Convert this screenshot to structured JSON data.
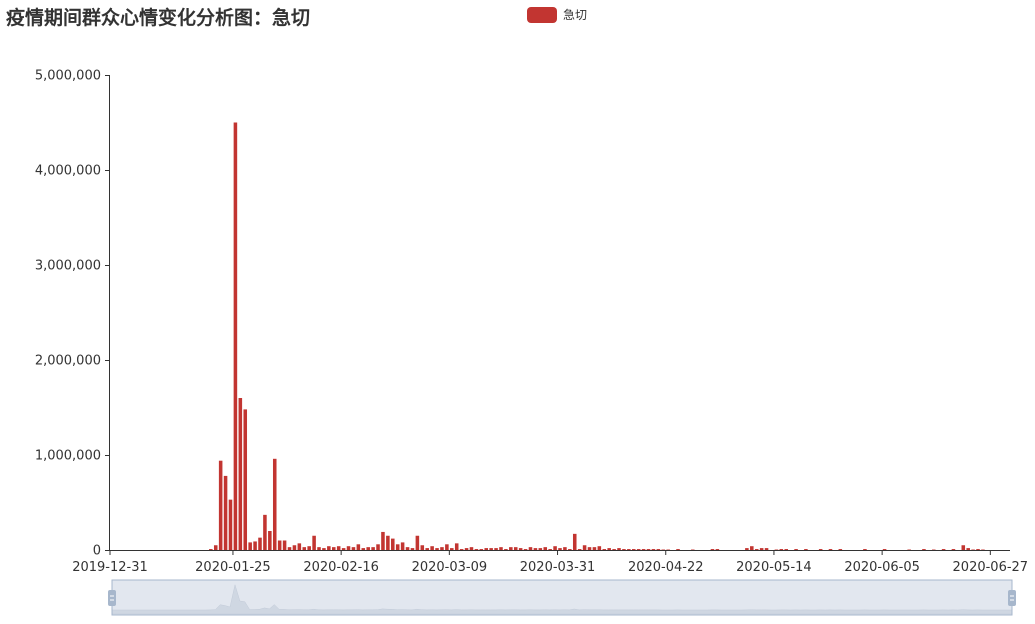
{
  "chart_data": {
    "type": "bar",
    "title": "疫情期间群众心情变化分析图：急切",
    "xlabel": "",
    "ylabel": "",
    "legend": {
      "position": "top-center",
      "entries": [
        "急切"
      ]
    },
    "grid": false,
    "colors": {
      "bar": "#c23531",
      "axis": "#333333",
      "slider_fill": "#d5dce8",
      "slider_border": "#a7b7cc"
    },
    "x_tick_labels": [
      "2019-12-31",
      "2020-01-25",
      "2020-02-16",
      "2020-03-09",
      "2020-03-31",
      "2020-04-22",
      "2020-05-14",
      "2020-06-05",
      "2020-06-27"
    ],
    "y_tick_labels": [
      "0",
      "1,000,000",
      "2,000,000",
      "3,000,000",
      "4,000,000",
      "5,000,000"
    ],
    "ylim": [
      0,
      5000000
    ],
    "xlim": [
      "2019-12-31",
      "2020-07-01"
    ],
    "datazoom": {
      "start": 0,
      "end": 100
    },
    "series": [
      {
        "name": "急切",
        "points": [
          [
            "2020-01-20",
            10000
          ],
          [
            "2020-01-21",
            50000
          ],
          [
            "2020-01-22",
            940000
          ],
          [
            "2020-01-23",
            780000
          ],
          [
            "2020-01-24",
            530000
          ],
          [
            "2020-01-25",
            4500000
          ],
          [
            "2020-01-26",
            1600000
          ],
          [
            "2020-01-27",
            1480000
          ],
          [
            "2020-01-28",
            80000
          ],
          [
            "2020-01-29",
            90000
          ],
          [
            "2020-01-30",
            130000
          ],
          [
            "2020-01-31",
            370000
          ],
          [
            "2020-02-01",
            200000
          ],
          [
            "2020-02-02",
            960000
          ],
          [
            "2020-02-03",
            100000
          ],
          [
            "2020-02-04",
            100000
          ],
          [
            "2020-02-05",
            30000
          ],
          [
            "2020-02-06",
            50000
          ],
          [
            "2020-02-07",
            70000
          ],
          [
            "2020-02-08",
            30000
          ],
          [
            "2020-02-09",
            40000
          ],
          [
            "2020-02-10",
            150000
          ],
          [
            "2020-02-11",
            30000
          ],
          [
            "2020-02-12",
            20000
          ],
          [
            "2020-02-13",
            40000
          ],
          [
            "2020-02-14",
            30000
          ],
          [
            "2020-02-15",
            40000
          ],
          [
            "2020-02-16",
            20000
          ],
          [
            "2020-02-17",
            40000
          ],
          [
            "2020-02-18",
            30000
          ],
          [
            "2020-02-19",
            60000
          ],
          [
            "2020-02-20",
            20000
          ],
          [
            "2020-02-21",
            30000
          ],
          [
            "2020-02-22",
            30000
          ],
          [
            "2020-02-23",
            60000
          ],
          [
            "2020-02-24",
            190000
          ],
          [
            "2020-02-25",
            150000
          ],
          [
            "2020-02-26",
            120000
          ],
          [
            "2020-02-27",
            60000
          ],
          [
            "2020-02-28",
            80000
          ],
          [
            "2020-02-29",
            30000
          ],
          [
            "2020-03-01",
            20000
          ],
          [
            "2020-03-02",
            150000
          ],
          [
            "2020-03-03",
            50000
          ],
          [
            "2020-03-04",
            20000
          ],
          [
            "2020-03-05",
            40000
          ],
          [
            "2020-03-06",
            20000
          ],
          [
            "2020-03-07",
            30000
          ],
          [
            "2020-03-08",
            60000
          ],
          [
            "2020-03-09",
            20000
          ],
          [
            "2020-03-10",
            70000
          ],
          [
            "2020-03-11",
            10000
          ],
          [
            "2020-03-12",
            20000
          ],
          [
            "2020-03-13",
            30000
          ],
          [
            "2020-03-14",
            10000
          ],
          [
            "2020-03-15",
            10000
          ],
          [
            "2020-03-16",
            20000
          ],
          [
            "2020-03-17",
            20000
          ],
          [
            "2020-03-18",
            20000
          ],
          [
            "2020-03-19",
            30000
          ],
          [
            "2020-03-20",
            10000
          ],
          [
            "2020-03-21",
            30000
          ],
          [
            "2020-03-22",
            30000
          ],
          [
            "2020-03-23",
            20000
          ],
          [
            "2020-03-24",
            10000
          ],
          [
            "2020-03-25",
            30000
          ],
          [
            "2020-03-26",
            20000
          ],
          [
            "2020-03-27",
            20000
          ],
          [
            "2020-03-28",
            30000
          ],
          [
            "2020-03-29",
            10000
          ],
          [
            "2020-03-30",
            40000
          ],
          [
            "2020-03-31",
            20000
          ],
          [
            "2020-04-01",
            30000
          ],
          [
            "2020-04-02",
            10000
          ],
          [
            "2020-04-03",
            170000
          ],
          [
            "2020-04-04",
            10000
          ],
          [
            "2020-04-05",
            50000
          ],
          [
            "2020-04-06",
            30000
          ],
          [
            "2020-04-07",
            30000
          ],
          [
            "2020-04-08",
            40000
          ],
          [
            "2020-04-09",
            10000
          ],
          [
            "2020-04-10",
            20000
          ],
          [
            "2020-04-11",
            10000
          ],
          [
            "2020-04-12",
            20000
          ],
          [
            "2020-04-13",
            10000
          ],
          [
            "2020-04-14",
            10000
          ],
          [
            "2020-04-15",
            10000
          ],
          [
            "2020-04-16",
            10000
          ],
          [
            "2020-04-17",
            10000
          ],
          [
            "2020-04-18",
            10000
          ],
          [
            "2020-04-19",
            10000
          ],
          [
            "2020-04-20",
            10000
          ],
          [
            "2020-04-21",
            5000
          ],
          [
            "2020-04-22",
            5000
          ],
          [
            "2020-04-24",
            10000
          ],
          [
            "2020-04-27",
            5000
          ],
          [
            "2020-05-01",
            10000
          ],
          [
            "2020-05-02",
            10000
          ],
          [
            "2020-05-08",
            20000
          ],
          [
            "2020-05-09",
            40000
          ],
          [
            "2020-05-10",
            10000
          ],
          [
            "2020-05-11",
            20000
          ],
          [
            "2020-05-12",
            20000
          ],
          [
            "2020-05-14",
            5000
          ],
          [
            "2020-05-15",
            10000
          ],
          [
            "2020-05-16",
            10000
          ],
          [
            "2020-05-18",
            10000
          ],
          [
            "2020-05-20",
            10000
          ],
          [
            "2020-05-23",
            10000
          ],
          [
            "2020-05-25",
            10000
          ],
          [
            "2020-05-27",
            10000
          ],
          [
            "2020-06-01",
            10000
          ],
          [
            "2020-06-05",
            10000
          ],
          [
            "2020-06-10",
            5000
          ],
          [
            "2020-06-13",
            10000
          ],
          [
            "2020-06-15",
            5000
          ],
          [
            "2020-06-17",
            10000
          ],
          [
            "2020-06-19",
            10000
          ],
          [
            "2020-06-21",
            50000
          ],
          [
            "2020-06-22",
            20000
          ],
          [
            "2020-06-23",
            5000
          ],
          [
            "2020-06-24",
            10000
          ],
          [
            "2020-06-25",
            5000
          ]
        ]
      }
    ]
  }
}
